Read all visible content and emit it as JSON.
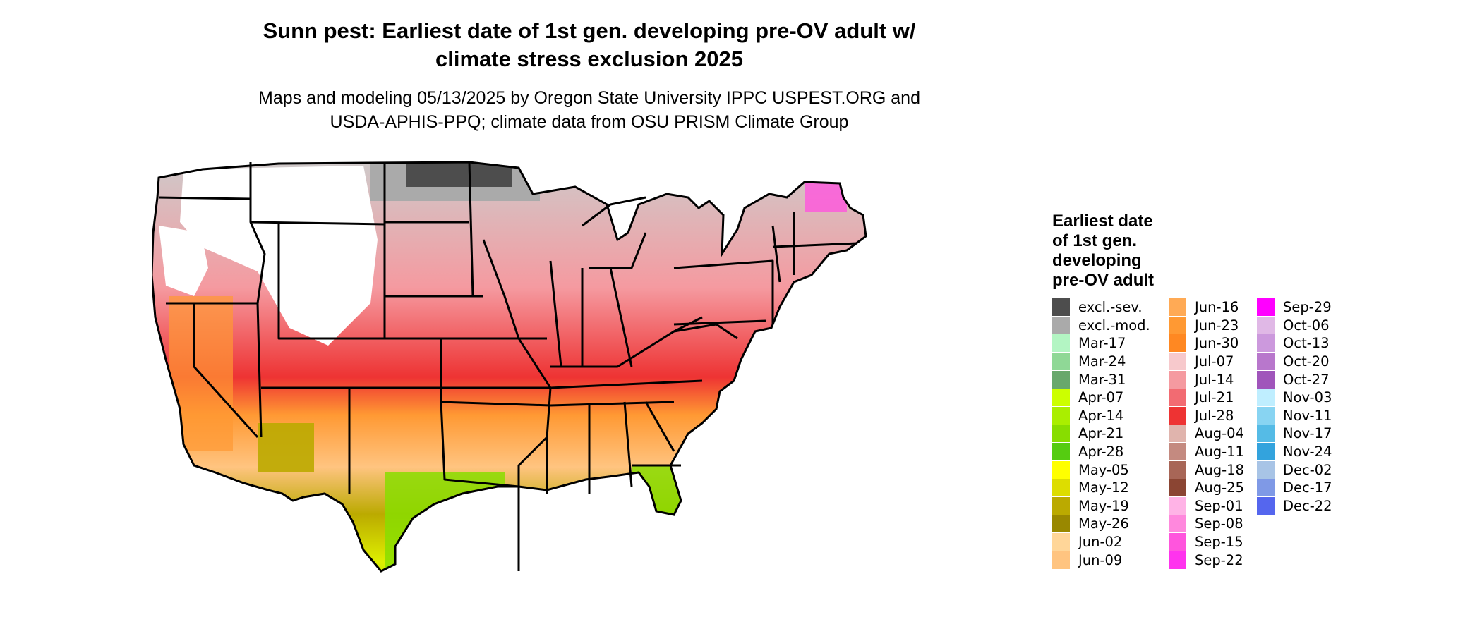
{
  "title": {
    "line1": "Sunn pest: Earliest date of 1st gen. developing pre-OV adult w/",
    "line2": "climate stress exclusion 2025"
  },
  "subtitle": {
    "line1": "Maps and modeling 05/13/2025 by Oregon State University IPPC USPEST.ORG and",
    "line2": "USDA-APHIS-PPQ; climate data from OSU PRISM Climate Group"
  },
  "legend": {
    "title_lines": [
      "Earliest date",
      "of 1st gen.",
      "developing",
      "pre-OV adult"
    ],
    "columns": [
      [
        {
          "label": "excl.-sev.",
          "color": "#4d4d4d"
        },
        {
          "label": "excl.-mod.",
          "color": "#aaaaaa"
        },
        {
          "label": "Mar-17",
          "color": "#b3f5c3"
        },
        {
          "label": "Mar-24",
          "color": "#8fd896"
        },
        {
          "label": "Mar-31",
          "color": "#68a86c"
        },
        {
          "label": "Apr-07",
          "color": "#ccff00"
        },
        {
          "label": "Apr-14",
          "color": "#aaee00"
        },
        {
          "label": "Apr-21",
          "color": "#88dd00"
        },
        {
          "label": "Apr-28",
          "color": "#55cc11"
        },
        {
          "label": "May-05",
          "color": "#ffff00"
        },
        {
          "label": "May-12",
          "color": "#dddd00"
        },
        {
          "label": "May-19",
          "color": "#bbaa00"
        },
        {
          "label": "May-26",
          "color": "#998800"
        },
        {
          "label": "Jun-02",
          "color": "#ffd699"
        },
        {
          "label": "Jun-09",
          "color": "#ffc480"
        }
      ],
      [
        {
          "label": "Jun-16",
          "color": "#ffaa55"
        },
        {
          "label": "Jun-23",
          "color": "#ff9933"
        },
        {
          "label": "Jun-30",
          "color": "#ff8822"
        },
        {
          "label": "Jul-07",
          "color": "#f7c9cc"
        },
        {
          "label": "Jul-14",
          "color": "#f59aa0"
        },
        {
          "label": "Jul-21",
          "color": "#f26b72"
        },
        {
          "label": "Jul-28",
          "color": "#ee3333"
        },
        {
          "label": "Aug-04",
          "color": "#e0b4ad"
        },
        {
          "label": "Aug-11",
          "color": "#c48a80"
        },
        {
          "label": "Aug-18",
          "color": "#a86657"
        },
        {
          "label": "Aug-25",
          "color": "#8b4533"
        },
        {
          "label": "Sep-01",
          "color": "#ffb3e6"
        },
        {
          "label": "Sep-08",
          "color": "#ff88dd"
        },
        {
          "label": "Sep-15",
          "color": "#ff55dd"
        },
        {
          "label": "Sep-22",
          "color": "#ff33ee"
        }
      ],
      [
        {
          "label": "Sep-29",
          "color": "#ff00ff"
        },
        {
          "label": "Oct-06",
          "color": "#e0b8e6"
        },
        {
          "label": "Oct-13",
          "color": "#cc99dd"
        },
        {
          "label": "Oct-20",
          "color": "#b877cc"
        },
        {
          "label": "Oct-27",
          "color": "#a055bb"
        },
        {
          "label": "Nov-03",
          "color": "#bfeeff"
        },
        {
          "label": "Nov-11",
          "color": "#88d4f2"
        },
        {
          "label": "Nov-17",
          "color": "#55bbe6"
        },
        {
          "label": "Nov-24",
          "color": "#33a3dd"
        },
        {
          "label": "Dec-02",
          "color": "#a8c4e6"
        },
        {
          "label": "Dec-17",
          "color": "#7f99e6"
        },
        {
          "label": "Dec-22",
          "color": "#5566ee"
        }
      ]
    ]
  },
  "map": {
    "outline_color": "#000000",
    "background_color": "#ffffff"
  }
}
